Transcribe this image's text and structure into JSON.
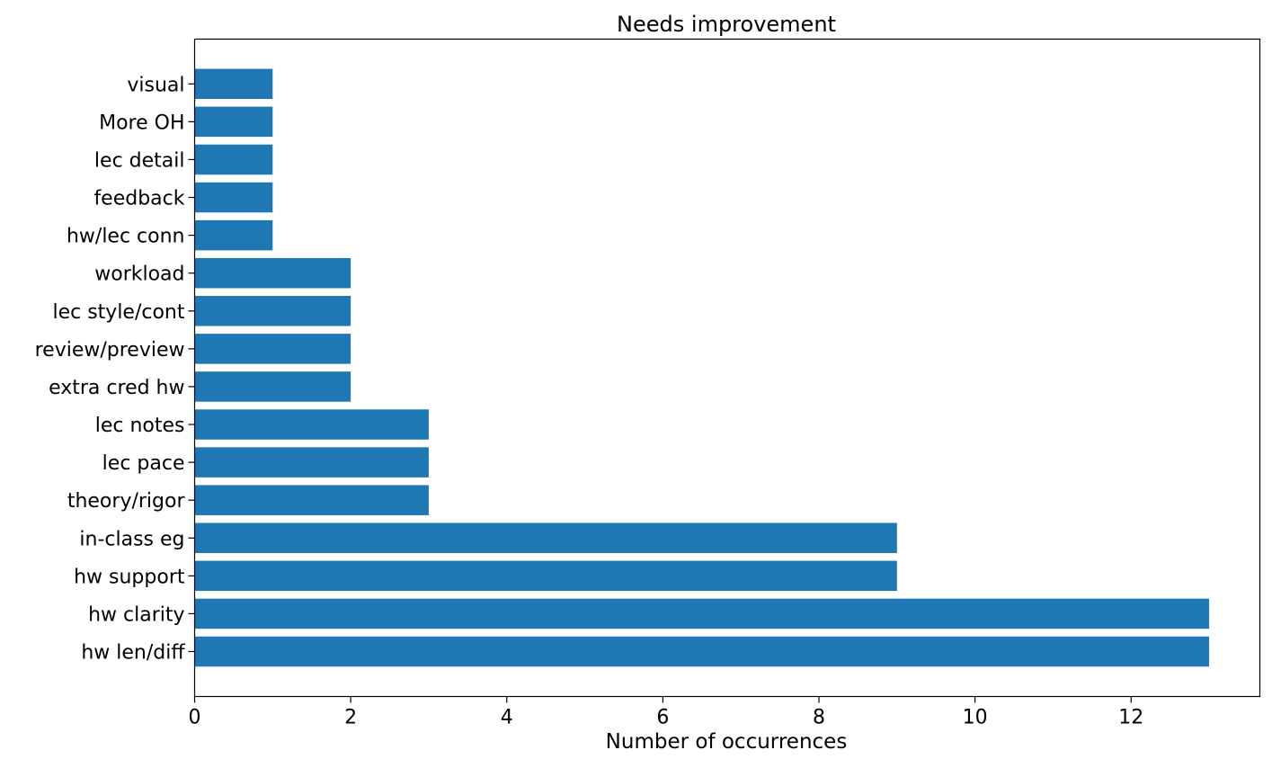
{
  "chart_data": {
    "type": "bar",
    "orientation": "horizontal",
    "title": "Needs improvement",
    "xlabel": "Number of occurrences",
    "ylabel": "",
    "categories": [
      "hw len/diff",
      "hw clarity",
      "hw support",
      "in-class eg",
      "theory/rigor",
      "lec pace",
      "lec notes",
      "extra cred hw",
      "review/preview",
      "lec style/cont",
      "workload",
      "hw/lec conn",
      "feedback",
      "lec detail",
      "More OH",
      "visual"
    ],
    "values": [
      13,
      13,
      9,
      9,
      3,
      3,
      3,
      2,
      2,
      2,
      2,
      1,
      1,
      1,
      1,
      1
    ],
    "xlim": [
      0,
      13.65
    ],
    "xticks": [
      0,
      2,
      4,
      6,
      8,
      10,
      12
    ],
    "grid": false,
    "bar_color": "#1f77b4"
  }
}
